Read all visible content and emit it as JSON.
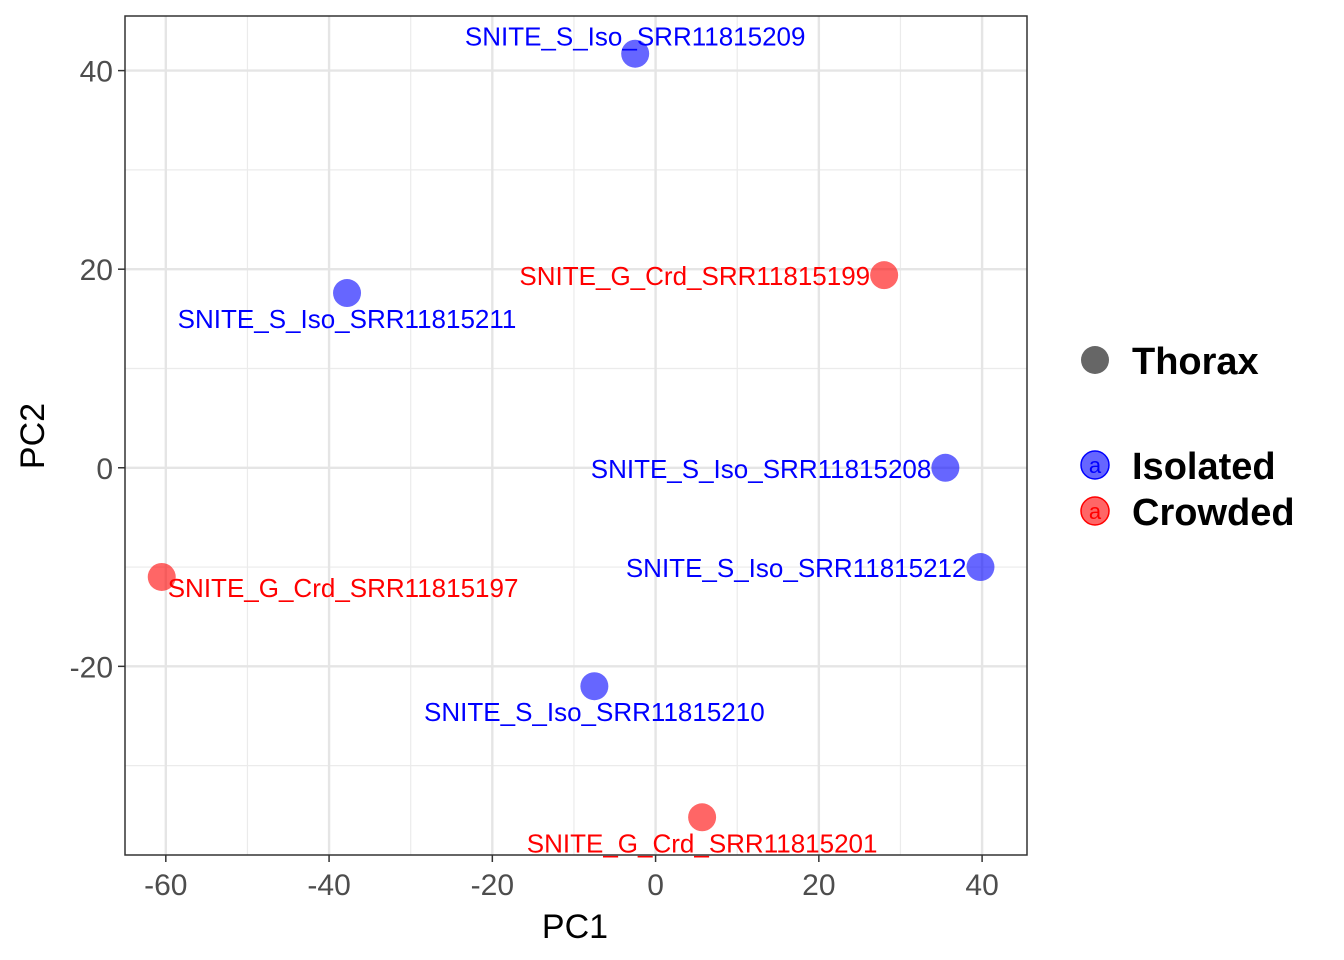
{
  "chart_data": {
    "type": "scatter",
    "xlabel": "PC1",
    "ylabel": "PC2",
    "xlim": [
      -65,
      45.5
    ],
    "ylim": [
      -39,
      45.5
    ],
    "x_ticks": [
      -60,
      -40,
      -20,
      0,
      20,
      40
    ],
    "y_ticks": [
      -20,
      0,
      20,
      40
    ],
    "grid": true,
    "legend_position": "right",
    "colors": {
      "Isolated": "#0000ff",
      "Crowded": "#ff0000",
      "shape_key": "#666666"
    },
    "legend": {
      "shape_entries": [
        "Thorax"
      ],
      "color_entries": [
        "Isolated",
        "Crowded"
      ],
      "key_glyph": "a"
    },
    "points": [
      {
        "label": "SNITE_S_Iso_SRR11815209",
        "group": "Isolated",
        "x": -2.5,
        "y": 41.7,
        "label_side": "above"
      },
      {
        "label": "SNITE_G_Crd_SRR11815199",
        "group": "Crowded",
        "x": 28.0,
        "y": 19.4,
        "label_side": "left"
      },
      {
        "label": "SNITE_S_Iso_SRR11815211",
        "group": "Isolated",
        "x": -37.8,
        "y": 17.6,
        "label_side": "below"
      },
      {
        "label": "SNITE_S_Iso_SRR11815208",
        "group": "Isolated",
        "x": 35.5,
        "y": 0.0,
        "label_side": "left"
      },
      {
        "label": "SNITE_S_Iso_SRR11815212",
        "group": "Isolated",
        "x": 39.8,
        "y": -10.0,
        "label_side": "left"
      },
      {
        "label": "SNITE_G_Crd_SRR11815197",
        "group": "Crowded",
        "x": -60.5,
        "y": -11.0,
        "label_side": "right"
      },
      {
        "label": "SNITE_S_Iso_SRR11815210",
        "group": "Isolated",
        "x": -7.5,
        "y": -22.0,
        "label_side": "below"
      },
      {
        "label": "SNITE_G_Crd_SRR11815201",
        "group": "Crowded",
        "x": 5.7,
        "y": -35.2,
        "label_side": "below"
      }
    ]
  }
}
